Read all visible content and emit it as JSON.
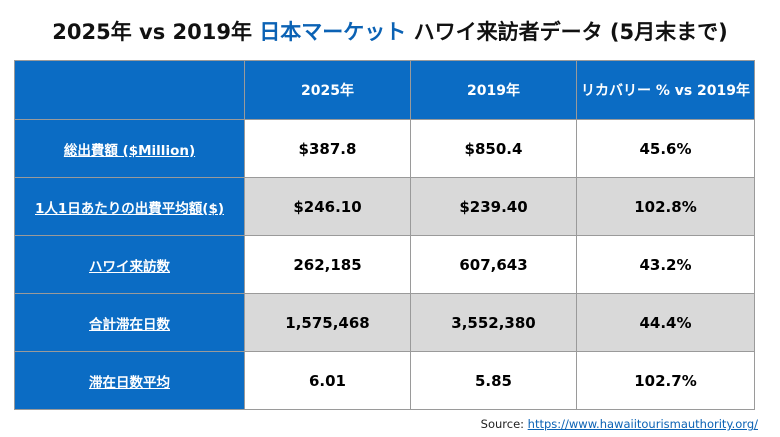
{
  "title": {
    "part1": "2025年 vs 2019年 ",
    "highlight": "日本マーケット",
    "part2": "  ハワイ来訪者データ (5月末まで)",
    "highlight_color": "#0b62b4"
  },
  "table": {
    "headers": [
      "",
      "2025年",
      "2019年",
      "リカバリー % vs 2019年"
    ],
    "rows": [
      {
        "label": "総出費額 ($Million)",
        "y2025": "$387.8",
        "y2019": "$850.4",
        "recovery": "45.6%"
      },
      {
        "label": "1人1日あたりの出費平均額($)",
        "y2025": "$246.10",
        "y2019": "$239.40",
        "recovery": "102.8%"
      },
      {
        "label": "ハワイ来訪数",
        "y2025": "262,185",
        "y2019": "607,643",
        "recovery": "43.2%"
      },
      {
        "label": "合計滞在日数",
        "y2025": "1,575,468",
        "y2019": "3,552,380",
        "recovery": "44.4%"
      },
      {
        "label": "滞在日数平均",
        "y2025": "6.01",
        "y2019": "5.85",
        "recovery": "102.7%"
      }
    ],
    "header_color": "#0b6cc4",
    "shade_color": "#d9d9d9"
  },
  "source": {
    "label": "Source: ",
    "link": "https://www.hawaiitourismauthority.org/"
  }
}
